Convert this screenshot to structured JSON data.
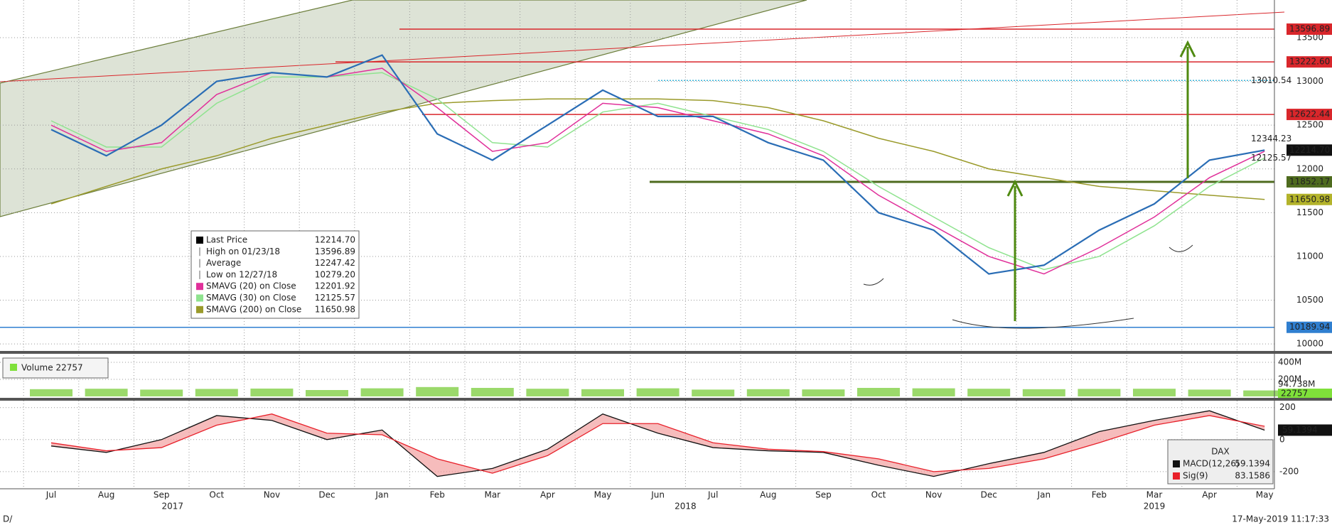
{
  "chart_data": {
    "type": "line",
    "categories": [
      "Jul",
      "Aug",
      "Sep",
      "Oct",
      "Nov",
      "Dec",
      "Jan",
      "Feb",
      "Mar",
      "Apr",
      "May",
      "Jun",
      "Jul",
      "Aug",
      "Sep",
      "Oct",
      "Nov",
      "Dec",
      "Jan",
      "Feb",
      "Mar",
      "Apr",
      "May"
    ],
    "years": [
      "2017",
      "2018",
      "2019"
    ],
    "ylim": [
      9920,
      13930
    ],
    "yticks": [
      10000,
      10500,
      11000,
      11500,
      12000,
      12500,
      13000,
      13500
    ],
    "grid": true,
    "series": [
      {
        "name": "Last Price",
        "color": "#2a6db5",
        "values": [
          12450,
          12150,
          12500,
          13000,
          13100,
          13050,
          13300,
          12400,
          12100,
          12500,
          12900,
          12600,
          12600,
          12300,
          12100,
          11500,
          11300,
          10800,
          10900,
          11300,
          11600,
          12100,
          12214.7
        ]
      },
      {
        "name": "SMAVG (20)  on Close",
        "color": "#e0309a",
        "values": [
          12500,
          12200,
          12300,
          12850,
          13100,
          13050,
          13150,
          12700,
          12200,
          12300,
          12750,
          12700,
          12550,
          12400,
          12150,
          11700,
          11350,
          11000,
          10800,
          11100,
          11450,
          11900,
          12201.92
        ]
      },
      {
        "name": "SMAVG (30)  on Close",
        "color": "#8fe38f",
        "values": [
          12550,
          12250,
          12250,
          12750,
          13050,
          13050,
          13100,
          12800,
          12300,
          12250,
          12650,
          12750,
          12600,
          12450,
          12200,
          11800,
          11450,
          11100,
          10850,
          11000,
          11350,
          11800,
          12125.57
        ]
      },
      {
        "name": "SMAVG (200)  on Close",
        "color": "#9a9a2a",
        "values": [
          11600,
          11800,
          12000,
          12150,
          12350,
          12500,
          12650,
          12750,
          12780,
          12800,
          12800,
          12800,
          12780,
          12700,
          12550,
          12350,
          12200,
          12000,
          11900,
          11800,
          11750,
          11700,
          11650.98
        ]
      }
    ],
    "levels": [
      {
        "value": 13596.89,
        "color": "#d9262b",
        "box": true,
        "line": true
      },
      {
        "value": 13222.6,
        "label": "13222.60",
        "color": "#d9262b",
        "box": true,
        "line": true
      },
      {
        "value": 13010.54,
        "color": "#3bb3d8",
        "box": false,
        "line": true
      },
      {
        "value": 12622.44,
        "color": "#d9262b",
        "box": true,
        "line": true
      },
      {
        "value": 12344.23,
        "color": "#3bb3d8",
        "box": false,
        "line": false
      },
      {
        "value": 12214.7,
        "label": "12214.70",
        "color": "#111111",
        "box": true,
        "line": false
      },
      {
        "value": 12125.57,
        "color": "#3fbf6a",
        "box": false,
        "line": false
      },
      {
        "value": 11852.17,
        "color": "#4e6b1e",
        "box": true,
        "line": true
      },
      {
        "value": 11650.98,
        "color": "#b3b32a",
        "box": true,
        "line": false
      },
      {
        "value": 10189.94,
        "color": "#2f7fd0",
        "box": true,
        "line": true
      }
    ],
    "legend": [
      {
        "name": "Last Price",
        "value": "12214.70",
        "color": "#000000"
      },
      {
        "name": "High on 01/23/18",
        "value": "13596.89",
        "color": null
      },
      {
        "name": "Average",
        "value": "12247.42",
        "color": null
      },
      {
        "name": "Low on 12/27/18",
        "value": "10279.20",
        "color": null
      },
      {
        "name": "SMAVG (20)  on Close",
        "value": "12201.92",
        "color": "#e0309a"
      },
      {
        "name": "SMAVG (30)  on Close",
        "value": "12125.57",
        "color": "#8fe38f"
      },
      {
        "name": "SMAVG (200)  on Close",
        "value": "11650.98",
        "color": "#9a9a2a"
      }
    ],
    "volume": {
      "legend": "Volume 22757",
      "color": "#9bd96b",
      "ylim": [
        0,
        500000000
      ],
      "yticks": [
        {
          "value": 200000000,
          "label": "200M"
        },
        {
          "value": 400000000,
          "label": "400M"
        }
      ],
      "values": [
        85000000,
        90000000,
        80000000,
        88000000,
        92000000,
        75000000,
        95000000,
        110000000,
        100000000,
        90000000,
        85000000,
        95000000,
        80000000,
        85000000,
        82000000,
        100000000,
        95000000,
        90000000,
        85000000,
        88000000,
        90000000,
        80000000,
        70000000
      ],
      "average_label": "94.738M",
      "last_label": "22757"
    },
    "macd": {
      "ylim": [
        -307,
        243
      ],
      "yticks": [
        -200,
        0,
        200
      ],
      "last_label": "59.1394",
      "instrument": "DAX",
      "series": [
        {
          "name": "MACD(12,26)",
          "value_label": "59.1394",
          "color": "#111111",
          "values": [
            -40,
            -80,
            0,
            150,
            120,
            0,
            60,
            -230,
            -180,
            -60,
            160,
            40,
            -50,
            -70,
            -80,
            -160,
            -230,
            -150,
            -80,
            50,
            120,
            180,
            59.1394
          ]
        },
        {
          "name": "Sig(9)",
          "value_label": "83.1586",
          "color": "#e8202a",
          "values": [
            -20,
            -70,
            -50,
            90,
            160,
            40,
            30,
            -120,
            -210,
            -100,
            100,
            100,
            -20,
            -60,
            -75,
            -120,
            -200,
            -180,
            -120,
            -20,
            90,
            150,
            83.1586
          ]
        }
      ]
    },
    "footer_left": "D/",
    "footer_right": "17-May-2019 11:17:33"
  }
}
